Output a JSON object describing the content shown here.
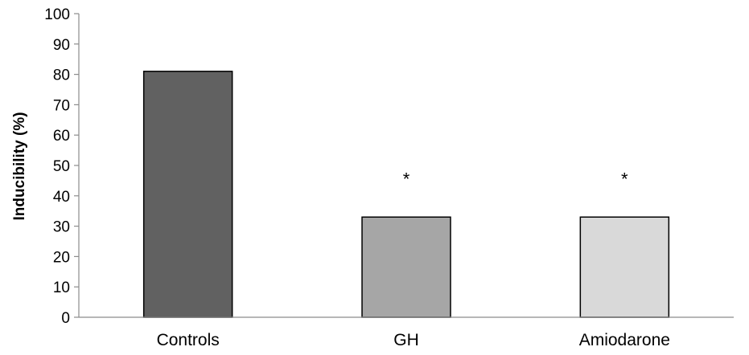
{
  "chart_data": {
    "type": "bar",
    "categories": [
      "Controls",
      "GH",
      "Amiodarone"
    ],
    "values": [
      81,
      33,
      33
    ],
    "bar_colors": [
      "#616161",
      "#a6a6a6",
      "#d9d9d9"
    ],
    "significance_markers": [
      "",
      "*",
      "*"
    ],
    "title": "",
    "xlabel": "",
    "ylabel": "Inducibility (%)",
    "ylim": [
      0,
      100
    ],
    "yticks": [
      0,
      10,
      20,
      30,
      40,
      50,
      60,
      70,
      80,
      90,
      100
    ],
    "grid": false,
    "legend": "none"
  }
}
